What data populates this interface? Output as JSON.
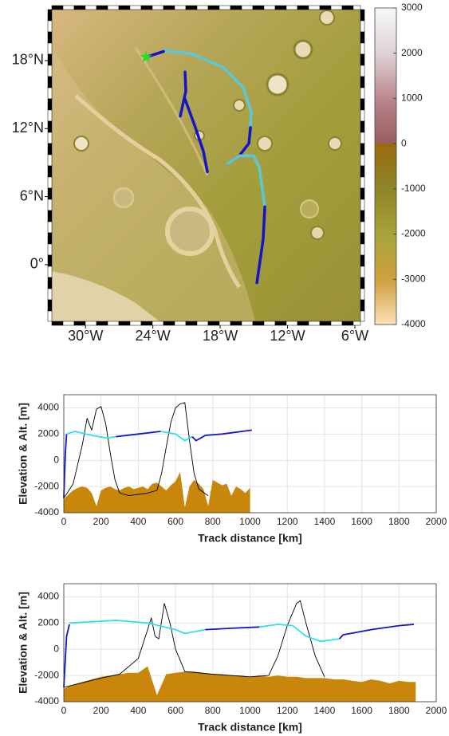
{
  "chart_data": [
    {
      "type": "map",
      "xlim": [
        -33,
        -5.5
      ],
      "ylim": [
        -5,
        22.5
      ],
      "xticks": [
        {
          "value": -30,
          "label": "30°W"
        },
        {
          "value": -24,
          "label": "24°W"
        },
        {
          "value": -18,
          "label": "18°W"
        },
        {
          "value": -12,
          "label": "12°W"
        },
        {
          "value": -6,
          "label": "6°W"
        }
      ],
      "yticks": [
        {
          "value": 18,
          "label": "18°N"
        },
        {
          "value": 12,
          "label": "12°N"
        },
        {
          "value": 6,
          "label": "6°N"
        },
        {
          "value": 0,
          "label": "0°"
        }
      ],
      "colorbar": {
        "lim": [
          -4000,
          3000
        ],
        "ticks": [
          3000,
          2000,
          1000,
          0,
          -1000,
          -2000,
          -3000,
          -4000
        ]
      },
      "marker": {
        "x": -24.61,
        "y": 18.3,
        "color": "#22e022"
      },
      "series": [
        {
          "color": "#5bc8d8",
          "x": [
            -23.05,
            -20.56,
            -17.72,
            -15.94,
            -15.23,
            -15.3
          ],
          "y": [
            18.9,
            18.6,
            17.4,
            15.6,
            13.5,
            12.1
          ]
        },
        {
          "color": "#1414c8",
          "x": [
            -15.3,
            -15.44,
            -16.3,
            -17.36
          ],
          "y": [
            12.1,
            10.7,
            9.6,
            8.9
          ]
        },
        {
          "color": "#1414c8",
          "x": [
            -24.61,
            -23.05
          ],
          "y": [
            18.3,
            18.8
          ]
        },
        {
          "color": "#1414c8",
          "x": [
            -21.13,
            -21.06,
            -21.56
          ],
          "y": [
            17.0,
            15.3,
            13.1
          ]
        },
        {
          "color": "#1414c8",
          "x": [
            -21.13,
            -20.21,
            -19.5,
            -19.14
          ],
          "y": [
            14.6,
            12.1,
            10.0,
            8.2
          ]
        },
        {
          "color": "#5bc8d8",
          "x": [
            -17.36,
            -16.3,
            -15.02,
            -14.52,
            -14.02
          ],
          "y": [
            8.9,
            9.6,
            9.6,
            8.6,
            5.1
          ]
        },
        {
          "color": "#1414c8",
          "x": [
            -14.02,
            -14.17,
            -14.73
          ],
          "y": [
            5.1,
            2.25,
            -1.6
          ]
        }
      ]
    },
    {
      "type": "line",
      "xlabel": "Track distance [km]",
      "ylabel": "Elevation & Alt. [m]",
      "xlim": [
        0,
        2000
      ],
      "ylim": [
        -4000,
        5000
      ],
      "grid": true,
      "xticks": [
        0,
        200,
        400,
        600,
        800,
        1000,
        1200,
        1400,
        1600,
        1800,
        2000
      ],
      "yticks": [
        -4000,
        -2000,
        0,
        2000,
        4000
      ],
      "series": [
        {
          "kind": "area",
          "color": "#c8870a",
          "x": [
            0,
            25,
            50,
            75,
            100,
            125,
            150,
            175,
            200,
            225,
            250,
            275,
            300,
            325,
            350,
            375,
            400,
            425,
            450,
            475,
            500,
            525,
            550,
            575,
            600,
            625,
            650,
            675,
            700,
            725,
            750,
            775,
            800,
            825,
            850,
            875,
            900,
            925,
            950,
            975,
            1000
          ],
          "values": [
            -3000,
            -2600,
            -2300,
            -2100,
            -2000,
            -2100,
            -2500,
            -3500,
            -2300,
            -2100,
            -2000,
            -2200,
            -2300,
            -2100,
            -2000,
            -2200,
            -2100,
            -2000,
            -2200,
            -1800,
            -1700,
            -2000,
            -2300,
            -1900,
            -1600,
            -900,
            -3600,
            -2000,
            -1500,
            -1800,
            -2200,
            -3500,
            -1500,
            -1700,
            -1900,
            -1800,
            -2700,
            -2000,
            -2200,
            -2500,
            -2100
          ]
        },
        {
          "kind": "line",
          "color": "#000000",
          "x": [
            0,
            50,
            100,
            125,
            150,
            175,
            200,
            225,
            250,
            275,
            300,
            350,
            400,
            450,
            500,
            525,
            550,
            575,
            600,
            625,
            650,
            675,
            700,
            725,
            775
          ],
          "values": [
            -2900,
            -1800,
            1200,
            3200,
            2300,
            3900,
            4100,
            2800,
            500,
            -1500,
            -2500,
            -2700,
            -2600,
            -2500,
            -2300,
            -1000,
            1000,
            2900,
            4000,
            4300,
            4400,
            1500,
            -1000,
            -2200,
            -2700
          ]
        },
        {
          "kind": "line",
          "color": "#1414c8",
          "x": [
            0,
            8,
            15
          ],
          "values": [
            -2900,
            500,
            2000
          ]
        },
        {
          "kind": "line",
          "color": "#30e0e8",
          "x": [
            15,
            60,
            150,
            230,
            280
          ],
          "values": [
            2000,
            2200,
            1900,
            1700,
            1800
          ]
        },
        {
          "kind": "line",
          "color": "#1414c8",
          "x": [
            280,
            400,
            520
          ],
          "values": [
            1800,
            2000,
            2200
          ]
        },
        {
          "kind": "line",
          "color": "#30e0e8",
          "x": [
            520,
            600,
            650,
            690
          ],
          "values": [
            2200,
            2000,
            1500,
            1800
          ]
        },
        {
          "kind": "line",
          "color": "#1414c8",
          "x": [
            690,
            710,
            760,
            850,
            1010
          ],
          "values": [
            1800,
            1500,
            1900,
            2000,
            2300
          ]
        }
      ]
    },
    {
      "type": "line",
      "xlabel": "Track distance [km]",
      "ylabel": "Elevation & Alt. [m]",
      "xlim": [
        0,
        2000
      ],
      "ylim": [
        -4000,
        5000
      ],
      "grid": true,
      "xticks": [
        0,
        200,
        400,
        600,
        800,
        1000,
        1200,
        1400,
        1600,
        1800,
        2000
      ],
      "yticks": [
        -4000,
        -2000,
        0,
        2000,
        4000
      ],
      "series": [
        {
          "kind": "area",
          "color": "#c8870a",
          "x": [
            0,
            50,
            100,
            150,
            200,
            250,
            300,
            350,
            400,
            450,
            500,
            550,
            600,
            650,
            700,
            750,
            800,
            850,
            900,
            950,
            1000,
            1050,
            1100,
            1150,
            1200,
            1250,
            1300,
            1350,
            1400,
            1450,
            1500,
            1550,
            1600,
            1650,
            1700,
            1750,
            1800,
            1850,
            1890
          ],
          "values": [
            -3000,
            -2700,
            -2500,
            -2300,
            -2100,
            -2000,
            -1900,
            -1800,
            -1800,
            -1300,
            -3500,
            -1900,
            -1800,
            -1700,
            -1700,
            -1800,
            -1900,
            -1900,
            -2000,
            -2000,
            -2100,
            -2000,
            -2100,
            -2000,
            -2100,
            -2100,
            -2200,
            -2200,
            -2200,
            -2300,
            -2300,
            -2400,
            -2500,
            -2300,
            -2400,
            -2600,
            -2400,
            -2500,
            -2500
          ]
        },
        {
          "kind": "line",
          "color": "#000000",
          "x": [
            0,
            200,
            300,
            400,
            450,
            470,
            490,
            510,
            540,
            570,
            600,
            650,
            800,
            1000,
            1100,
            1150,
            1200,
            1250,
            1270,
            1300,
            1350,
            1400
          ],
          "values": [
            -2900,
            -2200,
            -1900,
            -700,
            1500,
            2400,
            1000,
            800,
            3500,
            2000,
            0,
            -1700,
            -1900,
            -2100,
            -2000,
            -500,
            1800,
            3500,
            3700,
            2000,
            -500,
            -2100
          ]
        },
        {
          "kind": "line",
          "color": "#1414c8",
          "x": [
            0,
            15,
            30
          ],
          "values": [
            -2900,
            1000,
            1900
          ]
        },
        {
          "kind": "line",
          "color": "#30e0e8",
          "x": [
            30,
            280,
            450,
            600,
            650,
            760
          ],
          "values": [
            2000,
            2200,
            2000,
            1500,
            1200,
            1500
          ]
        },
        {
          "kind": "line",
          "color": "#1414c8",
          "x": [
            760,
            900,
            1050
          ],
          "values": [
            1500,
            1600,
            1700
          ]
        },
        {
          "kind": "line",
          "color": "#30e0e8",
          "x": [
            1050,
            1150,
            1230,
            1300,
            1380,
            1480
          ],
          "values": [
            1700,
            1900,
            1800,
            1000,
            600,
            800
          ]
        },
        {
          "kind": "line",
          "color": "#1414c8",
          "x": [
            1480,
            1500,
            1650,
            1800,
            1880
          ],
          "values": [
            800,
            1100,
            1500,
            1800,
            1900
          ]
        }
      ]
    }
  ]
}
